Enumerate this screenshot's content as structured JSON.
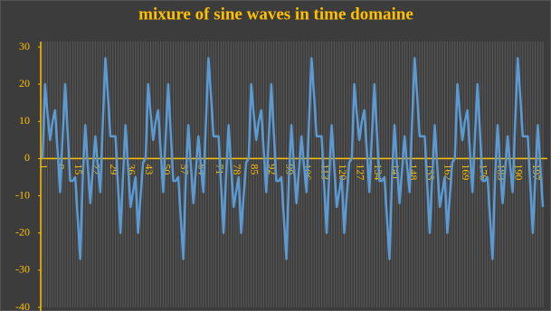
{
  "chart_data": {
    "type": "line",
    "title": "mixure of sine waves in time domaine",
    "categories": [
      1,
      null,
      null,
      null,
      null,
      null,
      null,
      8,
      null,
      null,
      null,
      null,
      null,
      null,
      15,
      null,
      null,
      null,
      null,
      null,
      null,
      22,
      null,
      null,
      null,
      null,
      null,
      null,
      29,
      null,
      null,
      null,
      null,
      null,
      null,
      36,
      null,
      null,
      null,
      null,
      null,
      null,
      43,
      null,
      null,
      null,
      null,
      null,
      null,
      50,
      null,
      null,
      null,
      null,
      null,
      null,
      57,
      null,
      null,
      null,
      null,
      null,
      null,
      64,
      null,
      null,
      null,
      null,
      null,
      null,
      71,
      null,
      null,
      null,
      null,
      null,
      null,
      78,
      null,
      null,
      null,
      null,
      null,
      null,
      85,
      null,
      null,
      null,
      null,
      null,
      null,
      92,
      null,
      null,
      null,
      null,
      null,
      null,
      99,
      null,
      null,
      null,
      null,
      null,
      null,
      106,
      null,
      null,
      null,
      null,
      null,
      null,
      113,
      null,
      null,
      null,
      null,
      null,
      null,
      120,
      null,
      null,
      null,
      null,
      null,
      null,
      127,
      null,
      null,
      null,
      null,
      null,
      null,
      134,
      null,
      null,
      null,
      null,
      null,
      null,
      141,
      null,
      null,
      null,
      null,
      null,
      null,
      148,
      null,
      null,
      null,
      null,
      null,
      null,
      155,
      null,
      null,
      null,
      null,
      null,
      null,
      162,
      null,
      null,
      null,
      null,
      null,
      null,
      169,
      null,
      null,
      null,
      null,
      null,
      null,
      176,
      null,
      null,
      null,
      null,
      null,
      null,
      183,
      null,
      null,
      null,
      null,
      null,
      null,
      190,
      null,
      null,
      null,
      null,
      null,
      null,
      197,
      null,
      null,
      null
    ],
    "values": [
      0,
      20,
      12,
      5,
      10,
      13,
      2,
      -9,
      6,
      20,
      7,
      -6,
      -6,
      -5,
      -16,
      -27,
      -5,
      9,
      -2,
      -12,
      -3,
      6,
      -2,
      -9,
      10,
      27,
      17,
      6,
      6,
      6,
      -7,
      -20,
      -5,
      9,
      -2,
      -13,
      -9,
      -5,
      -20,
      -10,
      -1,
      0,
      20,
      12,
      5,
      10,
      13,
      2,
      -9,
      6,
      20,
      7,
      -6,
      -6,
      -5,
      -16,
      -27,
      -5,
      9,
      -2,
      -12,
      -3,
      6,
      -2,
      -9,
      10,
      27,
      17,
      6,
      6,
      6,
      -7,
      -20,
      -5,
      9,
      -2,
      -13,
      -9,
      -5,
      -20,
      -10,
      -1,
      0,
      20,
      12,
      5,
      10,
      13,
      2,
      -9,
      6,
      20,
      7,
      -6,
      -6,
      -5,
      -16,
      -27,
      -5,
      9,
      -2,
      -12,
      -3,
      6,
      -2,
      -9,
      10,
      27,
      17,
      6,
      6,
      6,
      -7,
      -20,
      -5,
      9,
      -2,
      -13,
      -9,
      -5,
      -20,
      -10,
      -1,
      0,
      20,
      12,
      5,
      10,
      13,
      2,
      -9,
      6,
      20,
      7,
      -6,
      -6,
      -5,
      -16,
      -27,
      -5,
      9,
      -2,
      -12,
      -3,
      6,
      -2,
      -9,
      10,
      27,
      17,
      6,
      6,
      6,
      -7,
      -20,
      -5,
      9,
      -2,
      -13,
      -9,
      -5,
      -20,
      -10,
      -1,
      0,
      20,
      12,
      5,
      10,
      13,
      2,
      -9,
      6,
      20,
      7,
      -6,
      -6,
      -5,
      -16,
      -27,
      -5,
      9,
      -2,
      -12,
      -3,
      6,
      -2,
      -9,
      10,
      27,
      17,
      6,
      6,
      6,
      -7,
      -20,
      -5,
      9,
      -2,
      -13
    ],
    "color": "#5b9bd5",
    "ylim": [
      -40,
      30
    ],
    "yticks": [
      -40,
      -30,
      -20,
      -10,
      0,
      10,
      20,
      30
    ],
    "grid": true
  }
}
